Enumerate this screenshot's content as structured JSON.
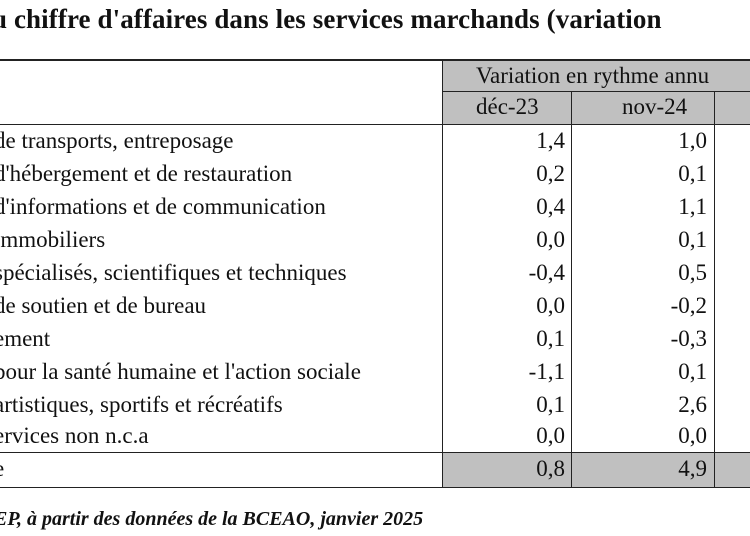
{
  "title": "u chiffre d'affaires dans les services marchands (variation",
  "header": {
    "group": "Variation en rythme annu",
    "col1": "déc-23",
    "col2": "nov-24"
  },
  "rows": [
    {
      "label": "de transports, entreposage",
      "c1": "1,4",
      "c2": "1,0"
    },
    {
      "label": "d'hébergement et de restauration",
      "c1": "0,2",
      "c2": "0,1"
    },
    {
      "label": "d'informations et de communication",
      "c1": "0,4",
      "c2": "1,1"
    },
    {
      "label": "immobiliers",
      "c1": "0,0",
      "c2": "0,1"
    },
    {
      "label": "spécialisés, scientifiques et techniques",
      "c1": "-0,4",
      "c2": "0,5"
    },
    {
      "label": "de soutien et de bureau",
      "c1": "0,0",
      "c2": "-0,2"
    },
    {
      "label": "ement",
      "c1": "0,1",
      "c2": "-0,3"
    },
    {
      "label": "pour la santé humaine et l'action sociale",
      "c1": "-1,1",
      "c2": "0,1"
    },
    {
      "label": "artistiques, sportifs et récréatifs",
      "c1": "0,1",
      "c2": "2,6"
    },
    {
      "label": "ervices non n.c.a",
      "c1": "0,0",
      "c2": "0,0"
    },
    {
      "label": "e",
      "c1": "0,8",
      "c2": "4,9"
    }
  ],
  "source": "EP, à partir des données de la BCEAO, janvier 2025"
}
